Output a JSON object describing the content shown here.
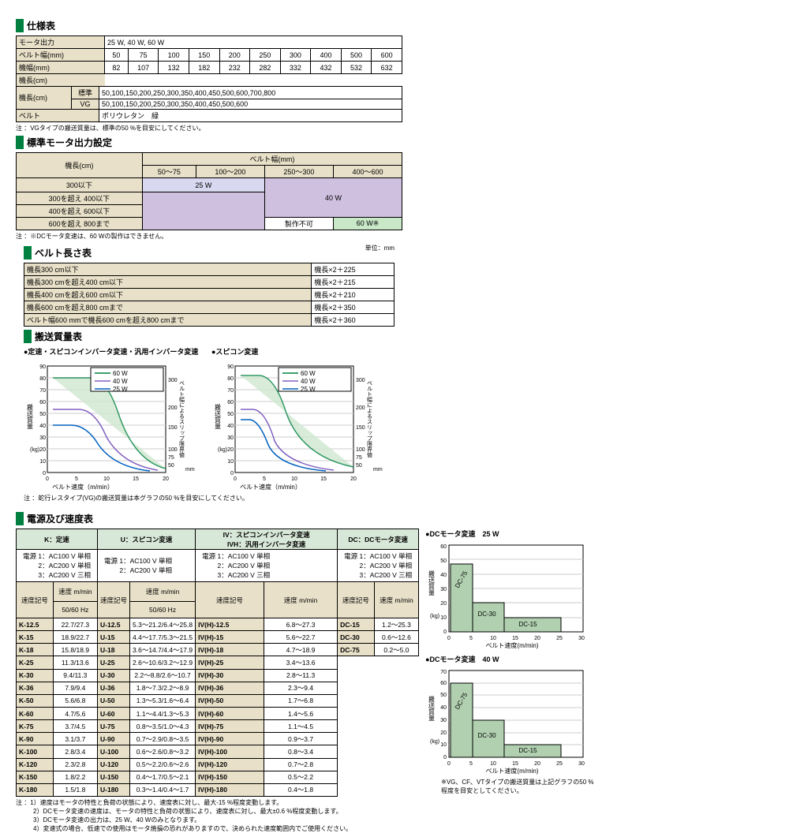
{
  "spec": {
    "title": "仕様表",
    "rows": {
      "motor": "モータ出力",
      "motorVal": "25 W, 40 W, 60 W",
      "beltW": "ベルト幅(mm)",
      "bw": [
        "50",
        "75",
        "100",
        "150",
        "200",
        "250",
        "300",
        "400",
        "500",
        "600"
      ],
      "machW": "機幅(mm)",
      "mw": [
        "82",
        "107",
        "132",
        "182",
        "232",
        "282",
        "332",
        "432",
        "532",
        "632"
      ],
      "machL": "機長(cm)",
      "std": "標準",
      "stdV": "50,100,150,200,250,300,350,400,450,500,600,700,800",
      "vg": "VG",
      "vgV": "50,100,150,200,250,300,350,400,450,500,600",
      "belt": "ベルト",
      "beltV": "ポリウレタン　緑"
    },
    "note": "注 ：VGタイプの搬送質量は、標準の50 %を目安にしてください。"
  },
  "beltLen": {
    "title": "ベルト長さ表",
    "unit": "単位：mm",
    "rows": [
      [
        "機長300 cm以下",
        "機長×2＋225"
      ],
      [
        "機長300 cmを超え400 cm以下",
        "機長×2＋215"
      ],
      [
        "機長400 cmを超え600 cm以下",
        "機長×2＋210"
      ],
      [
        "機長600 cmを超え800 cmまで",
        "機長×2＋350"
      ],
      [
        "ベルト幅600 mmで機長600 cmを超え800 cmまで",
        "機長×2＋360"
      ]
    ]
  },
  "motorSet": {
    "title": "標準モータ出力設定",
    "h1": "機長(cm)",
    "h2": "ベルト幅(mm)",
    "cols": [
      "50～75",
      "100～200",
      "250～300",
      "400～600"
    ],
    "rows": [
      "300以下",
      "300を超え 400以下",
      "400を超え 600以下",
      "600を超え 800まで"
    ],
    "w25": "25 W",
    "w40": "40 W",
    "w60": "60 W※",
    "ng": "製作不可",
    "note": "注 ：※DCモータ変速は、60 Wの製作はできません。"
  },
  "transport": {
    "title": "搬送質量表",
    "c1title": "●定速・スピコンインバータ変速・汎用インバータ変速",
    "c2title": "●スピコン変速",
    "xlabel": "ベルト速度（m/min）",
    "ylabel": "搬送質量",
    "y2label": "ベルト幅によるスリップ限界値",
    "yunit": "(kg)",
    "y2unit": "mm",
    "legend": [
      "60 W",
      "40 W",
      "25 W"
    ],
    "colors": [
      "#008040",
      "#8060c0",
      "#0060c0"
    ],
    "note": "注 ：蛇行レスタイプ(VG)の搬送質量は本グラフの50 %を目安にしてください。"
  },
  "power": {
    "title": "電源及び速度表",
    "groups": [
      {
        "h": "K：定速",
        "pw": [
          "電源 1：AC100 V 単相",
          "2：AC200 V 単相",
          "3：AC200 V 三相"
        ],
        "sh": "速度記号",
        "sp": "速度 m/min",
        "hz": "50/60 Hz"
      },
      {
        "h": "U：スピコン変速",
        "pw": [
          "電源 1：AC100 V 単相",
          "2：AC200 V 単相"
        ],
        "sh": "速度記号",
        "sp": "速度 m/min",
        "hz": "50/60 Hz"
      },
      {
        "h": "IV：スピコンインバータ変速 IVH：汎用インバータ変速",
        "pw": [
          "電源 1：AC100 V 単相",
          "2：AC200 V 単相",
          "3：AC200 V 三相"
        ],
        "sh": "速度記号",
        "sp": "速度 m/min"
      },
      {
        "h": "DC：DCモータ変速",
        "pw": [
          "電源 1：AC100 V 単相",
          "2：AC200 V 単相",
          "3：AC200 V 三相"
        ],
        "sh": "速度記号",
        "sp": "速度 m/min"
      }
    ],
    "rows": [
      [
        "K-12.5",
        "22.7/27.3",
        "U-12.5",
        "5.3～21.2/6.4～25.8",
        "IV(H)-12.5",
        "6.8～27.3",
        "DC-15",
        "1.2～25.3"
      ],
      [
        "K-15",
        "18.9/22.7",
        "U-15",
        "4.4～17.7/5.3～21.5",
        "IV(H)-15",
        "5.6～22.7",
        "DC-30",
        "0.6～12.6"
      ],
      [
        "K-18",
        "15.8/18.9",
        "U-18",
        "3.6～14.7/4.4～17.9",
        "IV(H)-18",
        "4.7～18.9",
        "DC-75",
        "0.2～5.0"
      ],
      [
        "K-25",
        "11.3/13.6",
        "U-25",
        "2.6～10.6/3.2～12.9",
        "IV(H)-25",
        "3.4～13.6",
        "",
        ""
      ],
      [
        "K-30",
        "9.4/11.3",
        "U-30",
        "2.2～8.8/2.6～10.7",
        "IV(H)-30",
        "2.8～11.3",
        "",
        ""
      ],
      [
        "K-36",
        "7.9/9.4",
        "U-36",
        "1.8～7.3/2.2～8.9",
        "IV(H)-36",
        "2.3～9.4",
        "",
        ""
      ],
      [
        "K-50",
        "5.6/6.8",
        "U-50",
        "1.3～5.3/1.6～6.4",
        "IV(H)-50",
        "1.7～6.8",
        "",
        ""
      ],
      [
        "K-60",
        "4.7/5.6",
        "U-60",
        "1.1～4.4/1.3～5.3",
        "IV(H)-60",
        "1.4～5.6",
        "",
        ""
      ],
      [
        "K-75",
        "3.7/4.5",
        "U-75",
        "0.8～3.5/1.0～4.3",
        "IV(H)-75",
        "1.1～4.5",
        "",
        ""
      ],
      [
        "K-90",
        "3.1/3.7",
        "U-90",
        "0.7～2.9/0.8～3.5",
        "IV(H)-90",
        "0.9～3.7",
        "",
        ""
      ],
      [
        "K-100",
        "2.8/3.4",
        "U-100",
        "0.6～2.6/0.8～3.2",
        "IV(H)-100",
        "0.8～3.4",
        "",
        ""
      ],
      [
        "K-120",
        "2.3/2.8",
        "U-120",
        "0.5～2.2/0.6～2.6",
        "IV(H)-120",
        "0.7～2.8",
        "",
        ""
      ],
      [
        "K-150",
        "1.8/2.2",
        "U-150",
        "0.4～1.7/0.5～2.1",
        "IV(H)-150",
        "0.5～2.2",
        "",
        ""
      ],
      [
        "K-180",
        "1.5/1.8",
        "U-180",
        "0.3～1.4/0.4～1.7",
        "IV(H)-180",
        "0.4～1.8",
        "",
        ""
      ]
    ],
    "notes": [
      "注 ：1）速度はモータの特性と負荷の状態により、速度表に対し、最大-15 %程度変動します。",
      "2）DCモータ変速の速度は、モータの特性と負荷の状態により、速度表に対し、最大±0.6 %程度変動します。",
      "3）DCモータ変速の出力は、25 W、40 Wのみとなります。",
      "4）変速式の場合、低速での使用はモータ焼損の恐れがありますので、決められた速度範囲内でご使用ください。"
    ]
  },
  "dc": {
    "t25": "●DCモータ変速　25 W",
    "t40": "●DCモータ変速　40 W",
    "xlabel": "ベルト速度(m/min)",
    "ylabel": "搬送質量",
    "yunit": "(kg)",
    "bars": [
      "DC-75",
      "DC-30",
      "DC-15"
    ],
    "color": "#b0d0b0",
    "note": "※VG、CF、VTタイプの搬送質量は上記グラフの50 %程度を目安としてください。"
  }
}
